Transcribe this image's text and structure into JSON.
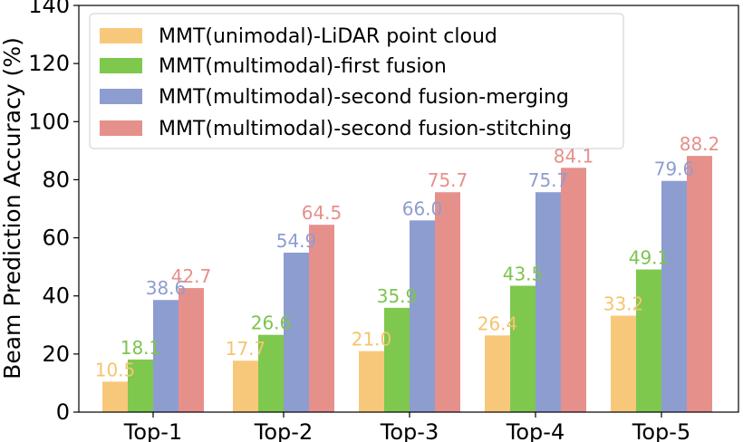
{
  "chart_data": {
    "type": "bar",
    "title": "",
    "xlabel": "",
    "ylabel": "Beam Prediction Accuracy (%)",
    "ylim": [
      0,
      140
    ],
    "yticks": [
      0,
      20,
      40,
      60,
      80,
      100,
      120,
      140
    ],
    "categories": [
      "Top-1",
      "Top-2",
      "Top-3",
      "Top-4",
      "Top-5"
    ],
    "series": [
      {
        "name": "MMT(unimodal)-LiDAR point cloud",
        "color": "#f8c87a",
        "label_color": "#f5c46e",
        "values": [
          10.5,
          17.7,
          21.0,
          26.4,
          33.2
        ]
      },
      {
        "name": "MMT(multimodal)-first fusion",
        "color": "#7ec84e",
        "label_color": "#7dc44e",
        "values": [
          18.1,
          26.6,
          35.9,
          43.5,
          49.1
        ]
      },
      {
        "name": "MMT(multimodal)-second fusion-merging",
        "color": "#8e9dd0",
        "label_color": "#8e9dd0",
        "values": [
          38.6,
          54.9,
          66.0,
          75.7,
          79.6
        ]
      },
      {
        "name": "MMT(multimodal)-second fusion-stitching",
        "color": "#e6908c",
        "label_color": "#e6908c",
        "values": [
          42.7,
          64.5,
          75.7,
          84.1,
          88.2
        ]
      }
    ],
    "legend_position": "top-left",
    "grid": false
  }
}
